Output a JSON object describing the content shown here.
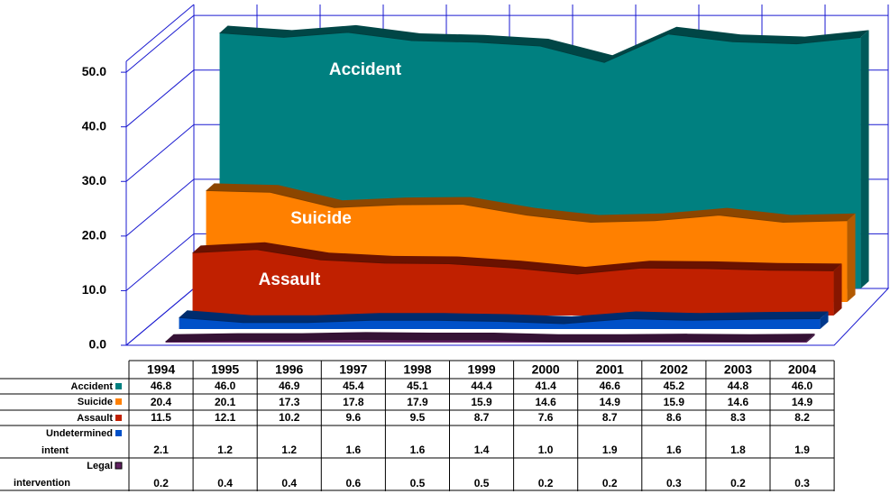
{
  "chart_data": {
    "type": "area3d",
    "categories": [
      "1994",
      "1995",
      "1996",
      "1997",
      "1998",
      "1999",
      "2000",
      "2001",
      "2002",
      "2003",
      "2004"
    ],
    "series": [
      {
        "name": "Accident",
        "color": "#008080",
        "values": [
          46.8,
          46.0,
          46.9,
          45.4,
          45.1,
          44.4,
          41.4,
          46.6,
          45.2,
          44.8,
          46.0
        ],
        "value_labels": [
          "46.8",
          "46.0",
          "46.9",
          "45.4",
          "45.1",
          "44.4",
          "41.4",
          "46.6",
          "45.2",
          "44.8",
          "46.0"
        ]
      },
      {
        "name": "Suicide",
        "color": "#ff8000",
        "values": [
          20.4,
          20.1,
          17.3,
          17.8,
          17.9,
          15.9,
          14.6,
          14.9,
          15.9,
          14.6,
          14.9
        ],
        "value_labels": [
          "20.4",
          "20.1",
          "17.3",
          "17.8",
          "17.9",
          "15.9",
          "14.6",
          "14.9",
          "15.9",
          "14.6",
          "14.9"
        ]
      },
      {
        "name": "Assault",
        "color": "#c02000",
        "values": [
          11.5,
          12.1,
          10.2,
          9.6,
          9.5,
          8.7,
          7.6,
          8.7,
          8.6,
          8.3,
          8.2
        ],
        "value_labels": [
          "11.5",
          "12.1",
          "10.2",
          "9.6",
          "9.5",
          "8.7",
          "7.6",
          "8.7",
          "8.6",
          "8.3",
          "8.2"
        ]
      },
      {
        "name": "Undetermined intent",
        "color": "#0050c8",
        "values": [
          2.1,
          1.2,
          1.2,
          1.6,
          1.6,
          1.4,
          1.0,
          1.9,
          1.6,
          1.8,
          1.9
        ],
        "value_labels": [
          "2.1",
          "1.2",
          "1.2",
          "1.6",
          "1.6",
          "1.4",
          "1.0",
          "1.9",
          "1.6",
          "1.8",
          "1.9"
        ]
      },
      {
        "name": "Legal intervention",
        "color": "#602060",
        "values": [
          0.2,
          0.4,
          0.4,
          0.6,
          0.5,
          0.5,
          0.2,
          0.2,
          0.3,
          0.2,
          0.3
        ],
        "value_labels": [
          "0.2",
          "0.4",
          "0.4",
          "0.6",
          "0.5",
          "0.5",
          "0.2",
          "0.2",
          "0.3",
          "0.2",
          "0.3"
        ]
      }
    ],
    "ylim": [
      0,
      52
    ],
    "yticks": [
      {
        "value": 0,
        "label": "0.0"
      },
      {
        "value": 10,
        "label": "10.0"
      },
      {
        "value": 20,
        "label": "20.0"
      },
      {
        "value": 30,
        "label": "30.0"
      },
      {
        "value": 40,
        "label": "40.0"
      },
      {
        "value": 50,
        "label": "50.0"
      }
    ],
    "grid": true
  }
}
